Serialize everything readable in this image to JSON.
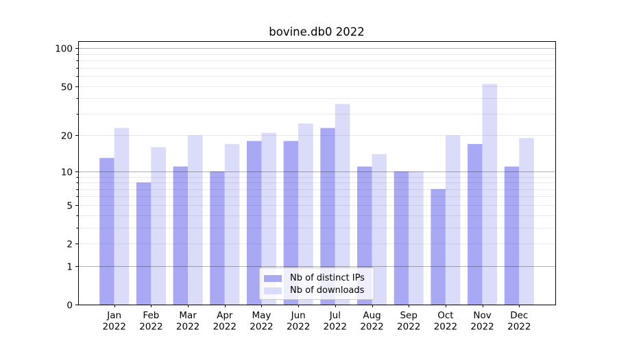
{
  "title": "bovine.db0 2022",
  "chart_data": {
    "type": "bar",
    "title": "bovine.db0 2022",
    "x_tick_line2": "2022",
    "categories": [
      "Jan",
      "Feb",
      "Mar",
      "Apr",
      "May",
      "Jun",
      "Jul",
      "Aug",
      "Sep",
      "Oct",
      "Nov",
      "Dec"
    ],
    "series": [
      {
        "name": "Nb of distinct IPs",
        "color": "#a8a8f5",
        "values": [
          13,
          8,
          11,
          10,
          18,
          18,
          23,
          11,
          10,
          7,
          17,
          11
        ]
      },
      {
        "name": "Nb of downloads",
        "color": "#dbdbfa",
        "values": [
          23,
          16,
          20,
          17,
          21,
          25,
          36,
          14,
          10,
          20,
          52,
          19
        ]
      }
    ],
    "y_scale": "log1p",
    "ylim": [
      0,
      100
    ],
    "y_ticks": [
      100,
      50,
      20,
      10,
      5,
      2,
      1,
      0
    ],
    "y_minor_ticks": [
      2,
      3,
      4,
      5,
      6,
      7,
      8,
      9,
      20,
      30,
      40,
      50,
      60,
      70,
      80,
      90
    ],
    "grid": true,
    "legend_position": "lower-center"
  }
}
